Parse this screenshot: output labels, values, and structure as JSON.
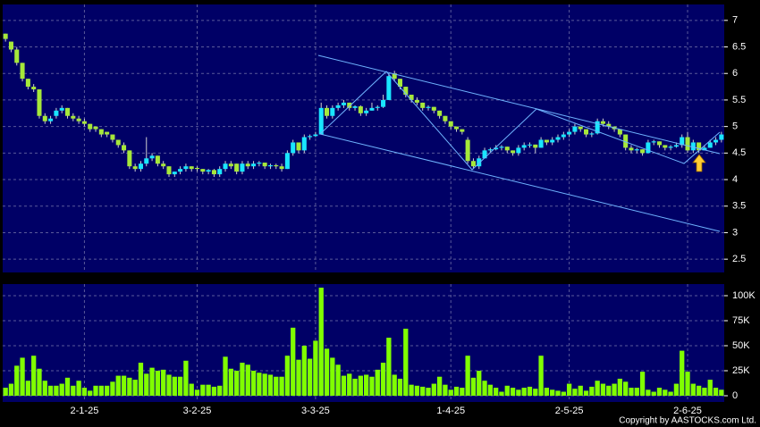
{
  "chart_data": [
    {
      "type": "candlestick",
      "categories": [
        null,
        null,
        null,
        null,
        null,
        null,
        null,
        null,
        null,
        null,
        null,
        null,
        null,
        null,
        "2-1-25",
        null,
        null,
        null,
        null,
        null,
        null,
        null,
        null,
        null,
        null,
        null,
        null,
        null,
        null,
        null,
        null,
        null,
        null,
        null,
        "3-2-25",
        null,
        null,
        null,
        null,
        null,
        null,
        null,
        null,
        null,
        null,
        null,
        null,
        null,
        null,
        null,
        null,
        null,
        null,
        null,
        null,
        "3-3-25",
        null,
        null,
        null,
        null,
        null,
        null,
        null,
        null,
        null,
        null,
        null,
        null,
        null,
        null,
        null,
        null,
        null,
        null,
        null,
        null,
        null,
        null,
        null,
        "1-4-25",
        null,
        null,
        null,
        null,
        null,
        null,
        null,
        null,
        null,
        null,
        null,
        null,
        null,
        null,
        null,
        null,
        null,
        null,
        null,
        null,
        "2-5-25",
        null,
        null,
        null,
        null,
        null,
        null,
        null,
        null,
        null,
        null,
        null,
        null,
        null,
        null,
        null,
        null,
        null,
        null,
        null,
        null,
        "2-6-25",
        null,
        null,
        null,
        null,
        null,
        null,
        null
      ],
      "ohlc": [
        [
          6.75,
          6.75,
          6.6,
          6.65
        ],
        [
          6.6,
          6.6,
          6.4,
          6.45
        ],
        [
          6.45,
          6.5,
          6.15,
          6.2
        ],
        [
          6.2,
          6.2,
          5.85,
          5.9
        ],
        [
          5.9,
          5.9,
          5.7,
          5.75
        ],
        [
          5.75,
          5.8,
          5.65,
          5.7
        ],
        [
          5.7,
          5.7,
          5.15,
          5.2
        ],
        [
          5.2,
          5.25,
          5.05,
          5.1
        ],
        [
          5.1,
          5.2,
          5.05,
          5.15
        ],
        [
          5.2,
          5.35,
          5.15,
          5.3
        ],
        [
          5.3,
          5.4,
          5.25,
          5.35
        ],
        [
          5.35,
          5.35,
          5.15,
          5.2
        ],
        [
          5.2,
          5.25,
          5.1,
          5.15
        ],
        [
          5.15,
          5.2,
          5.05,
          5.1
        ],
        [
          5.1,
          5.15,
          5.0,
          5.05
        ],
        [
          5.05,
          5.05,
          4.9,
          4.95
        ],
        [
          5.0,
          5.0,
          4.9,
          4.95
        ],
        [
          4.95,
          4.95,
          4.8,
          4.85
        ],
        [
          4.9,
          4.9,
          4.8,
          4.85
        ],
        [
          4.85,
          4.85,
          4.7,
          4.75
        ],
        [
          4.75,
          4.75,
          4.6,
          4.65
        ],
        [
          4.65,
          4.7,
          4.5,
          4.55
        ],
        [
          4.55,
          4.55,
          4.2,
          4.25
        ],
        [
          4.25,
          4.3,
          4.15,
          4.2
        ],
        [
          4.2,
          4.35,
          4.15,
          4.3
        ],
        [
          4.3,
          4.8,
          4.25,
          4.4
        ],
        [
          4.4,
          4.5,
          4.35,
          4.45
        ],
        [
          4.45,
          4.45,
          4.25,
          4.3
        ],
        [
          4.3,
          4.35,
          4.2,
          4.25
        ],
        [
          4.25,
          4.25,
          4.05,
          4.1
        ],
        [
          4.1,
          4.15,
          4.05,
          4.15
        ],
        [
          4.15,
          4.25,
          4.1,
          4.2
        ],
        [
          4.2,
          4.3,
          4.15,
          4.25
        ],
        [
          4.25,
          4.25,
          4.15,
          4.2
        ],
        [
          4.22,
          4.25,
          4.15,
          4.2
        ],
        [
          4.2,
          4.2,
          4.1,
          4.15
        ],
        [
          4.15,
          4.2,
          4.1,
          4.18
        ],
        [
          4.18,
          4.2,
          4.05,
          4.1
        ],
        [
          4.1,
          4.25,
          4.05,
          4.2
        ],
        [
          4.2,
          4.35,
          4.15,
          4.3
        ],
        [
          4.3,
          4.35,
          4.2,
          4.25
        ],
        [
          4.3,
          4.3,
          4.1,
          4.15
        ],
        [
          4.15,
          4.35,
          4.1,
          4.3
        ],
        [
          4.3,
          4.35,
          4.2,
          4.25
        ],
        [
          4.25,
          4.35,
          4.2,
          4.3
        ],
        [
          4.3,
          4.35,
          4.25,
          4.32
        ],
        [
          4.32,
          4.32,
          4.2,
          4.25
        ],
        [
          4.25,
          4.3,
          4.2,
          4.27
        ],
        [
          4.27,
          4.3,
          4.2,
          4.25
        ],
        [
          4.25,
          4.3,
          4.15,
          4.2
        ],
        [
          4.2,
          4.55,
          4.2,
          4.5
        ],
        [
          4.5,
          4.75,
          4.45,
          4.7
        ],
        [
          4.7,
          4.7,
          4.5,
          4.55
        ],
        [
          4.55,
          4.85,
          4.5,
          4.8
        ],
        [
          4.8,
          4.85,
          4.75,
          4.82
        ],
        [
          4.82,
          4.9,
          4.8,
          4.85
        ],
        [
          4.85,
          5.45,
          4.85,
          5.35
        ],
        [
          5.35,
          5.4,
          5.15,
          5.2
        ],
        [
          5.2,
          5.4,
          5.15,
          5.35
        ],
        [
          5.35,
          5.45,
          5.3,
          5.4
        ],
        [
          5.4,
          5.5,
          5.35,
          5.45
        ],
        [
          5.45,
          5.45,
          5.3,
          5.35
        ],
        [
          5.35,
          5.4,
          5.3,
          5.38
        ],
        [
          5.38,
          5.4,
          5.2,
          5.25
        ],
        [
          5.25,
          5.35,
          5.2,
          5.3
        ],
        [
          5.3,
          5.45,
          5.3,
          5.35
        ],
        [
          5.35,
          5.4,
          5.3,
          5.37
        ],
        [
          5.37,
          5.6,
          5.35,
          5.5
        ],
        [
          5.5,
          6.0,
          5.5,
          5.95
        ],
        [
          6.0,
          6.05,
          5.85,
          5.9
        ],
        [
          5.9,
          5.9,
          5.7,
          5.75
        ],
        [
          5.75,
          5.75,
          5.55,
          5.6
        ],
        [
          5.6,
          5.6,
          5.45,
          5.5
        ],
        [
          5.5,
          5.55,
          5.4,
          5.45
        ],
        [
          5.45,
          5.45,
          5.3,
          5.35
        ],
        [
          5.35,
          5.4,
          5.3,
          5.37
        ],
        [
          5.37,
          5.37,
          5.25,
          5.3
        ],
        [
          5.3,
          5.3,
          5.15,
          5.2
        ],
        [
          5.2,
          5.2,
          5.05,
          5.1
        ],
        [
          5.1,
          5.1,
          4.95,
          5.0
        ],
        [
          5.0,
          5.0,
          4.9,
          4.95
        ],
        [
          4.95,
          4.95,
          4.85,
          4.9
        ],
        [
          4.75,
          4.8,
          4.3,
          4.35
        ],
        [
          4.35,
          4.4,
          4.2,
          4.25
        ],
        [
          4.25,
          4.45,
          4.2,
          4.4
        ],
        [
          4.4,
          4.6,
          4.4,
          4.55
        ],
        [
          4.55,
          4.6,
          4.5,
          4.57
        ],
        [
          4.57,
          4.65,
          4.55,
          4.6
        ],
        [
          4.6,
          4.65,
          4.55,
          4.62
        ],
        [
          4.62,
          4.62,
          4.5,
          4.55
        ],
        [
          4.55,
          4.55,
          4.45,
          4.5
        ],
        [
          4.5,
          4.65,
          4.45,
          4.6
        ],
        [
          4.6,
          4.7,
          4.55,
          4.65
        ],
        [
          4.65,
          4.7,
          4.6,
          4.66
        ],
        [
          4.66,
          4.66,
          4.5,
          4.6
        ],
        [
          4.6,
          4.8,
          4.6,
          4.75
        ],
        [
          4.75,
          4.75,
          4.65,
          4.7
        ],
        [
          4.7,
          4.8,
          4.65,
          4.75
        ],
        [
          4.75,
          4.85,
          4.7,
          4.8
        ],
        [
          4.8,
          4.9,
          4.75,
          4.85
        ],
        [
          4.85,
          4.95,
          4.8,
          4.9
        ],
        [
          4.9,
          5.05,
          4.85,
          5.0
        ],
        [
          5.0,
          5.0,
          4.9,
          4.95
        ],
        [
          4.95,
          4.95,
          4.8,
          4.85
        ],
        [
          4.85,
          4.9,
          4.8,
          4.87
        ],
        [
          4.87,
          5.15,
          4.85,
          5.1
        ],
        [
          5.1,
          5.15,
          5.0,
          5.05
        ],
        [
          5.05,
          5.1,
          4.95,
          5.0
        ],
        [
          5.0,
          5.0,
          4.9,
          4.95
        ],
        [
          4.95,
          4.95,
          4.8,
          4.85
        ],
        [
          4.85,
          4.85,
          4.55,
          4.6
        ],
        [
          4.6,
          4.65,
          4.5,
          4.55
        ],
        [
          4.55,
          4.6,
          4.5,
          4.57
        ],
        [
          4.57,
          4.57,
          4.45,
          4.5
        ],
        [
          4.5,
          4.75,
          4.5,
          4.7
        ],
        [
          4.7,
          4.75,
          4.65,
          4.72
        ],
        [
          4.72,
          4.72,
          4.6,
          4.65
        ],
        [
          4.65,
          4.65,
          4.55,
          4.6
        ],
        [
          4.6,
          4.65,
          4.55,
          4.62
        ],
        [
          4.62,
          4.7,
          4.6,
          4.65
        ],
        [
          4.65,
          4.85,
          4.6,
          4.8
        ],
        [
          4.8,
          4.9,
          4.5,
          4.55
        ],
        [
          4.55,
          4.75,
          4.5,
          4.7
        ],
        [
          4.7,
          4.7,
          4.5,
          4.55
        ],
        [
          4.55,
          4.65,
          4.55,
          4.6
        ],
        [
          4.6,
          4.75,
          4.6,
          4.7
        ],
        [
          4.7,
          4.8,
          4.65,
          4.75
        ],
        [
          4.75,
          4.9,
          4.7,
          4.85
        ]
      ],
      "up_color": "#19e6ff",
      "down_color": "#a6e83a",
      "ylim": [
        2.25,
        7.3
      ],
      "yticks": [
        2.5,
        3,
        3.5,
        4,
        4.5,
        5,
        5.5,
        6,
        6.5,
        7
      ],
      "grid": true
    },
    {
      "type": "bar",
      "values": [
        8000,
        12000,
        30000,
        38000,
        15000,
        40000,
        27000,
        15000,
        10000,
        10000,
        12000,
        18000,
        10000,
        15000,
        8000,
        5000,
        10000,
        10000,
        10000,
        14000,
        20000,
        20000,
        18000,
        16000,
        33000,
        22000,
        28000,
        25000,
        26000,
        21000,
        19000,
        19000,
        35000,
        12000,
        6000,
        11000,
        11000,
        9000,
        10000,
        39000,
        27000,
        25000,
        33000,
        31000,
        25000,
        23000,
        22000,
        21000,
        19000,
        19000,
        40000,
        68000,
        36000,
        50000,
        37000,
        55000,
        108000,
        47000,
        38000,
        31000,
        20000,
        22000,
        17000,
        20000,
        21000,
        19000,
        26000,
        33000,
        58000,
        21000,
        17000,
        67000,
        11000,
        10000,
        9000,
        8000,
        12000,
        19000,
        11000,
        6000,
        9000,
        8000,
        40000,
        18000,
        25000,
        15000,
        11000,
        8000,
        4000,
        10000,
        8000,
        6000,
        8000,
        9000,
        7000,
        40000,
        8000,
        6000,
        5000,
        4000,
        12000,
        7000,
        10000,
        5000,
        9000,
        15000,
        12000,
        10000,
        12000,
        17000,
        14000,
        8000,
        8000,
        24000,
        6000,
        4000,
        8000,
        6000,
        4000,
        12000,
        45000,
        24000,
        12000,
        10000,
        8000,
        16000,
        8000,
        6000
      ],
      "color": "#80ff00",
      "ylim": [
        -6250,
        111600
      ],
      "yticks": [
        0,
        {
          "value": 25000,
          "label": "25K"
        },
        {
          "value": 50000,
          "label": "50K"
        },
        {
          "value": 75000,
          "label": "75K"
        },
        {
          "value": 100000,
          "label": "100K"
        }
      ],
      "grid": true,
      "copyright": "Copyright by AASTOCKS.com Ltd."
    }
  ]
}
